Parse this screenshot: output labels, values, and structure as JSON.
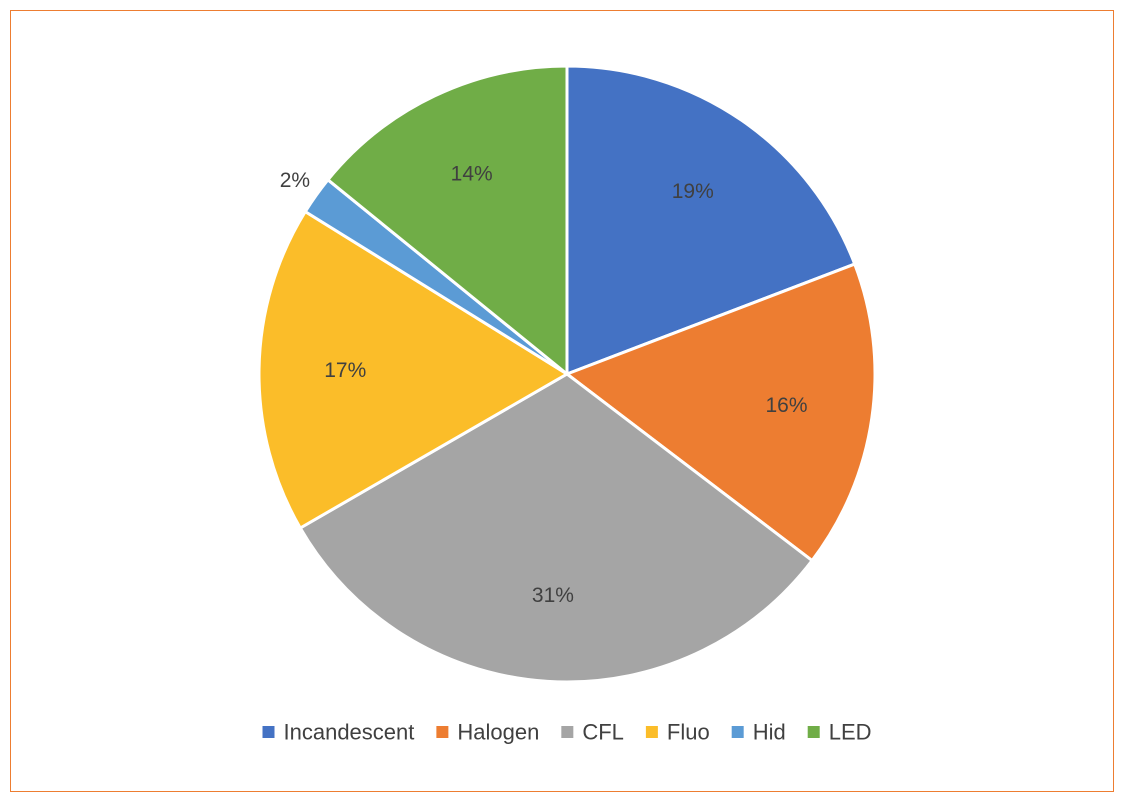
{
  "chart_data": {
    "type": "pie",
    "title": "",
    "slices": [
      {
        "label": "Incandescent",
        "value": 19,
        "display": "19%",
        "color": "#4472c4"
      },
      {
        "label": "Halogen",
        "value": 16,
        "display": "16%",
        "color": "#ed7d31"
      },
      {
        "label": "CFL",
        "value": 31,
        "display": "31%",
        "color": "#a5a5a5"
      },
      {
        "label": "Fluo",
        "value": 17,
        "display": "17%",
        "color": "#fbbd29"
      },
      {
        "label": "Hid",
        "value": 2,
        "display": "2%",
        "color": "#5b9bd5"
      },
      {
        "label": "LED",
        "value": 14,
        "display": "14%",
        "color": "#70ad47"
      }
    ],
    "legend_position": "bottom",
    "border_color": "#ed7d31"
  }
}
